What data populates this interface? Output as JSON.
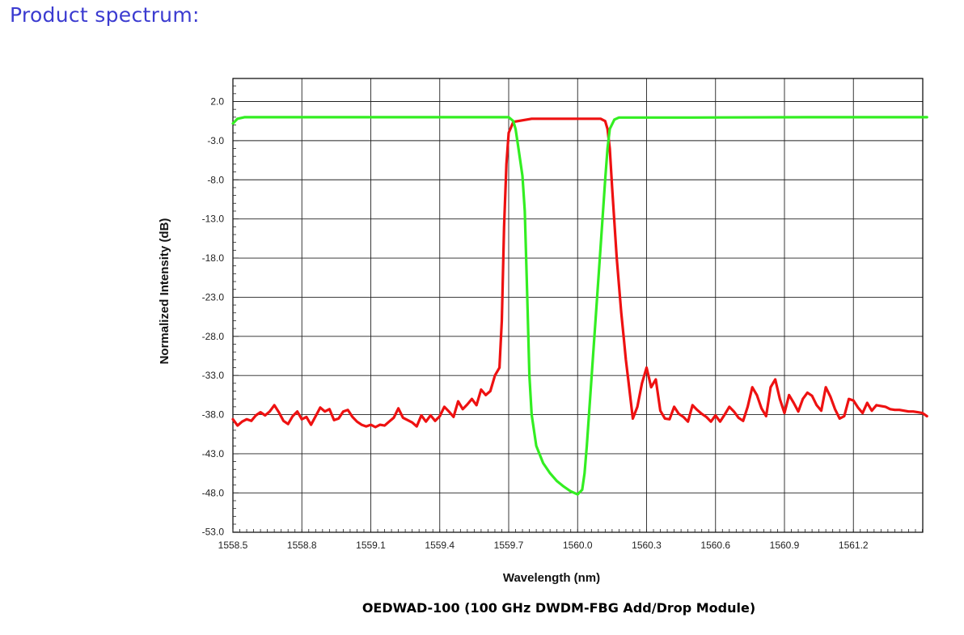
{
  "page": {
    "heading": "Product spectrum:",
    "caption": "OEDWAD-100 (100 GHz DWDM-FBG Add/Drop Module)"
  },
  "chart_data": {
    "type": "line",
    "xlabel": "Wavelength (nm)",
    "ylabel": "Normalized Intensity (dB)",
    "xlim": [
      1558.5,
      1561.52
    ],
    "ylim": [
      -53.0,
      6.0
    ],
    "x_ticks": [
      1558.5,
      1558.8,
      1559.1,
      1559.4,
      1559.7,
      1560.0,
      1560.3,
      1560.6,
      1560.9,
      1561.2
    ],
    "x_tick_labels": [
      "1558.5",
      "1558.8",
      "1559.1",
      "1559.4",
      "1559.7",
      "1560.0",
      "1560.3",
      "1560.6",
      "1560.9",
      "1561.2"
    ],
    "y_ticks": [
      2.0,
      -3.0,
      -8.0,
      -13.0,
      -18.0,
      -23.0,
      -28.0,
      -33.0,
      -38.0,
      -43.0,
      -48.0,
      -53.0
    ],
    "y_tick_labels": [
      "2.0",
      "-3.0",
      "-8.0",
      "-13.0",
      "-18.0",
      "-23.0",
      "-28.0",
      "-33.0",
      "-38.0",
      "-43.0",
      "-48.0",
      "-53.0"
    ],
    "grid": true,
    "series": [
      {
        "color": "#ee1111",
        "points": [
          [
            1558.5,
            -38.6
          ],
          [
            1558.52,
            -39.4
          ],
          [
            1558.54,
            -38.9
          ],
          [
            1558.56,
            -38.6
          ],
          [
            1558.58,
            -38.8
          ],
          [
            1558.6,
            -38.1
          ],
          [
            1558.62,
            -37.7
          ],
          [
            1558.64,
            -38.1
          ],
          [
            1558.66,
            -37.6
          ],
          [
            1558.68,
            -36.8
          ],
          [
            1558.7,
            -37.7
          ],
          [
            1558.72,
            -38.8
          ],
          [
            1558.74,
            -39.2
          ],
          [
            1558.76,
            -38.2
          ],
          [
            1558.78,
            -37.6
          ],
          [
            1558.8,
            -38.6
          ],
          [
            1558.82,
            -38.3
          ],
          [
            1558.84,
            -39.3
          ],
          [
            1558.86,
            -38.2
          ],
          [
            1558.88,
            -37.1
          ],
          [
            1558.9,
            -37.6
          ],
          [
            1558.92,
            -37.3
          ],
          [
            1558.94,
            -38.7
          ],
          [
            1558.96,
            -38.5
          ],
          [
            1558.98,
            -37.6
          ],
          [
            1559.0,
            -37.4
          ],
          [
            1559.02,
            -38.3
          ],
          [
            1559.04,
            -38.9
          ],
          [
            1559.06,
            -39.3
          ],
          [
            1559.08,
            -39.5
          ],
          [
            1559.1,
            -39.3
          ],
          [
            1559.12,
            -39.6
          ],
          [
            1559.14,
            -39.3
          ],
          [
            1559.16,
            -39.4
          ],
          [
            1559.18,
            -38.9
          ],
          [
            1559.2,
            -38.4
          ],
          [
            1559.22,
            -37.2
          ],
          [
            1559.24,
            -38.4
          ],
          [
            1559.26,
            -38.7
          ],
          [
            1559.28,
            -39.0
          ],
          [
            1559.3,
            -39.5
          ],
          [
            1559.32,
            -38.1
          ],
          [
            1559.34,
            -38.9
          ],
          [
            1559.36,
            -38.1
          ],
          [
            1559.38,
            -38.8
          ],
          [
            1559.4,
            -38.2
          ],
          [
            1559.42,
            -37.0
          ],
          [
            1559.44,
            -37.6
          ],
          [
            1559.46,
            -38.3
          ],
          [
            1559.48,
            -36.3
          ],
          [
            1559.5,
            -37.3
          ],
          [
            1559.52,
            -36.7
          ],
          [
            1559.54,
            -36.0
          ],
          [
            1559.56,
            -36.8
          ],
          [
            1559.58,
            -34.8
          ],
          [
            1559.6,
            -35.5
          ],
          [
            1559.62,
            -35.0
          ],
          [
            1559.64,
            -33.0
          ],
          [
            1559.66,
            -32.0
          ],
          [
            1559.67,
            -26.0
          ],
          [
            1559.68,
            -14.0
          ],
          [
            1559.69,
            -6.0
          ],
          [
            1559.7,
            -2.0
          ],
          [
            1559.72,
            -0.6
          ],
          [
            1559.8,
            -0.2
          ],
          [
            1560.0,
            -0.2
          ],
          [
            1560.1,
            -0.2
          ],
          [
            1560.12,
            -0.5
          ],
          [
            1560.13,
            -1.5
          ],
          [
            1560.14,
            -4.0
          ],
          [
            1560.15,
            -9.0
          ],
          [
            1560.17,
            -18.0
          ],
          [
            1560.19,
            -25.0
          ],
          [
            1560.2,
            -28.0
          ],
          [
            1560.21,
            -31.0
          ],
          [
            1560.22,
            -33.5
          ],
          [
            1560.24,
            -38.5
          ],
          [
            1560.26,
            -37.0
          ],
          [
            1560.28,
            -34.0
          ],
          [
            1560.3,
            -32.0
          ],
          [
            1560.32,
            -34.5
          ],
          [
            1560.34,
            -33.5
          ],
          [
            1560.36,
            -37.5
          ],
          [
            1560.38,
            -38.5
          ],
          [
            1560.4,
            -38.6
          ],
          [
            1560.42,
            -37.0
          ],
          [
            1560.44,
            -37.9
          ],
          [
            1560.46,
            -38.3
          ],
          [
            1560.48,
            -38.9
          ],
          [
            1560.5,
            -36.8
          ],
          [
            1560.52,
            -37.4
          ],
          [
            1560.54,
            -37.9
          ],
          [
            1560.56,
            -38.3
          ],
          [
            1560.58,
            -38.9
          ],
          [
            1560.6,
            -38.1
          ],
          [
            1560.62,
            -38.9
          ],
          [
            1560.64,
            -38.0
          ],
          [
            1560.66,
            -37.0
          ],
          [
            1560.68,
            -37.6
          ],
          [
            1560.7,
            -38.4
          ],
          [
            1560.72,
            -38.8
          ],
          [
            1560.74,
            -37.0
          ],
          [
            1560.76,
            -34.5
          ],
          [
            1560.78,
            -35.5
          ],
          [
            1560.8,
            -37.2
          ],
          [
            1560.82,
            -38.2
          ],
          [
            1560.84,
            -34.5
          ],
          [
            1560.86,
            -33.5
          ],
          [
            1560.88,
            -36.0
          ],
          [
            1560.9,
            -37.8
          ],
          [
            1560.92,
            -35.5
          ],
          [
            1560.94,
            -36.5
          ],
          [
            1560.96,
            -37.6
          ],
          [
            1560.98,
            -36.0
          ],
          [
            1561.0,
            -35.2
          ],
          [
            1561.02,
            -35.6
          ],
          [
            1561.04,
            -36.8
          ],
          [
            1561.06,
            -37.5
          ],
          [
            1561.08,
            -34.5
          ],
          [
            1561.1,
            -35.7
          ],
          [
            1561.12,
            -37.3
          ],
          [
            1561.14,
            -38.5
          ],
          [
            1561.16,
            -38.2
          ],
          [
            1561.18,
            -36.0
          ],
          [
            1561.2,
            -36.2
          ],
          [
            1561.22,
            -37.1
          ],
          [
            1561.24,
            -37.8
          ],
          [
            1561.26,
            -36.5
          ],
          [
            1561.28,
            -37.5
          ],
          [
            1561.3,
            -36.8
          ],
          [
            1561.32,
            -36.9
          ],
          [
            1561.34,
            -37.0
          ],
          [
            1561.36,
            -37.3
          ],
          [
            1561.38,
            -37.4
          ],
          [
            1561.4,
            -37.4
          ],
          [
            1561.42,
            -37.5
          ],
          [
            1561.44,
            -37.6
          ],
          [
            1561.46,
            -37.6
          ],
          [
            1561.48,
            -37.7
          ],
          [
            1561.5,
            -37.8
          ],
          [
            1561.52,
            -38.2
          ]
        ]
      },
      {
        "color": "#33ee22",
        "points": [
          [
            1558.5,
            -0.8
          ],
          [
            1558.52,
            -0.2
          ],
          [
            1558.55,
            0.0
          ],
          [
            1559.0,
            0.0
          ],
          [
            1559.5,
            0.0
          ],
          [
            1559.7,
            0.0
          ],
          [
            1559.72,
            -0.5
          ],
          [
            1559.73,
            -1.5
          ],
          [
            1559.74,
            -3.5
          ],
          [
            1559.76,
            -7.5
          ],
          [
            1559.77,
            -12.0
          ],
          [
            1559.78,
            -22.0
          ],
          [
            1559.79,
            -33.0
          ],
          [
            1559.8,
            -38.0
          ],
          [
            1559.82,
            -42.0
          ],
          [
            1559.85,
            -44.2
          ],
          [
            1559.88,
            -45.5
          ],
          [
            1559.91,
            -46.5
          ],
          [
            1559.94,
            -47.2
          ],
          [
            1559.97,
            -47.8
          ],
          [
            1560.0,
            -48.2
          ],
          [
            1560.02,
            -47.6
          ],
          [
            1560.03,
            -45.5
          ],
          [
            1560.04,
            -42.0
          ],
          [
            1560.06,
            -33.5
          ],
          [
            1560.08,
            -25.0
          ],
          [
            1560.1,
            -16.5
          ],
          [
            1560.12,
            -8.0
          ],
          [
            1560.13,
            -4.0
          ],
          [
            1560.14,
            -1.5
          ],
          [
            1560.16,
            -0.3
          ],
          [
            1560.18,
            -0.05
          ],
          [
            1560.5,
            -0.05
          ],
          [
            1561.0,
            0.0
          ],
          [
            1561.52,
            0.0
          ]
        ]
      }
    ]
  }
}
